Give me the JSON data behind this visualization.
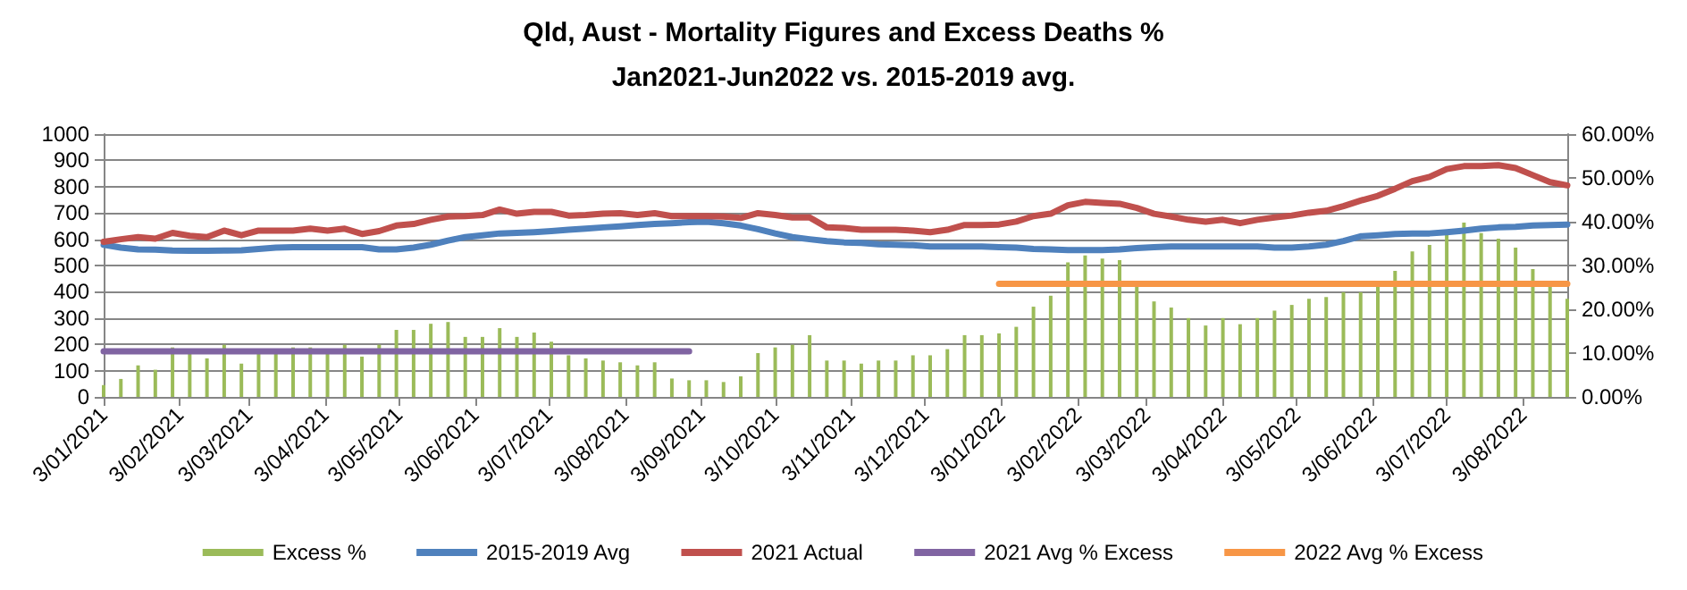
{
  "chart_data": {
    "type": "bar",
    "title": "Qld, Aust - Mortality Figures and Excess Deaths %",
    "subtitle": "Jan2021-Jun2022 vs. 2015-2019 avg.",
    "x": [
      "2021-01-03",
      "2021-01-10",
      "2021-01-17",
      "2021-01-24",
      "2021-01-31",
      "2021-02-07",
      "2021-02-14",
      "2021-02-21",
      "2021-02-28",
      "2021-03-07",
      "2021-03-14",
      "2021-03-21",
      "2021-03-28",
      "2021-04-04",
      "2021-04-11",
      "2021-04-18",
      "2021-04-25",
      "2021-05-02",
      "2021-05-09",
      "2021-05-16",
      "2021-05-23",
      "2021-05-30",
      "2021-06-06",
      "2021-06-13",
      "2021-06-20",
      "2021-06-27",
      "2021-07-04",
      "2021-07-11",
      "2021-07-18",
      "2021-07-25",
      "2021-08-01",
      "2021-08-08",
      "2021-08-15",
      "2021-08-22",
      "2021-08-29",
      "2021-09-05",
      "2021-09-12",
      "2021-09-19",
      "2021-09-26",
      "2021-10-03",
      "2021-10-10",
      "2021-10-17",
      "2021-10-24",
      "2021-10-31",
      "2021-11-07",
      "2021-11-14",
      "2021-11-21",
      "2021-11-28",
      "2021-12-05",
      "2021-12-12",
      "2021-12-19",
      "2021-12-26",
      "2022-01-02",
      "2022-01-09",
      "2022-01-16",
      "2022-01-23",
      "2022-01-30",
      "2022-02-06",
      "2022-02-13",
      "2022-02-20",
      "2022-02-27",
      "2022-03-06",
      "2022-03-13",
      "2022-03-20",
      "2022-03-27",
      "2022-04-03",
      "2022-04-10",
      "2022-04-17",
      "2022-04-24",
      "2022-05-01",
      "2022-05-08",
      "2022-05-15",
      "2022-05-22",
      "2022-05-29",
      "2022-06-05",
      "2022-06-12",
      "2022-06-19",
      "2022-06-26",
      "2022-07-03",
      "2022-07-10",
      "2022-07-17",
      "2022-07-24",
      "2022-07-31",
      "2022-08-07",
      "2022-08-14",
      "2022-08-21"
    ],
    "series": [
      {
        "name": "Excess %",
        "axis": "y2",
        "color": "#9bbb59",
        "values": [
          2.7,
          4.1,
          7.2,
          6.2,
          11.3,
          9.9,
          8.8,
          11.9,
          7.6,
          9.9,
          9.9,
          11.3,
          11.3,
          9.9,
          11.9,
          9.2,
          11.9,
          15.3,
          15.3,
          16.7,
          17.1,
          13.7,
          13.7,
          15.7,
          13.7,
          14.7,
          12.6,
          9.5,
          8.8,
          8.3,
          7.9,
          7.2,
          7.9,
          4.2,
          3.8,
          3.8,
          3.4,
          4.7,
          10.0,
          11.3,
          11.9,
          14.1,
          8.3,
          8.3,
          7.6,
          8.3,
          8.3,
          9.5,
          9.5,
          10.9,
          14.1,
          14.1,
          14.5,
          16.0,
          20.6,
          23.1,
          30.7,
          32.3,
          31.6,
          31.2,
          25.5,
          21.8,
          20.4,
          18.0,
          16.3,
          18.0,
          16.6,
          18.0,
          19.7,
          21.0,
          22.4,
          22.8,
          23.9,
          23.9,
          25.2,
          28.8,
          33.2,
          34.7,
          37.0,
          39.8,
          37.4,
          36.1,
          34.1,
          29.2,
          25.2,
          22.4
        ]
      },
      {
        "name": "2015-2019 Avg",
        "type": "line",
        "color": "#4f81bd",
        "values": [
          579,
          568,
          561,
          560,
          557,
          556,
          556,
          557,
          558,
          563,
          568,
          570,
          570,
          570,
          570,
          570,
          561,
          561,
          568,
          579,
          595,
          608,
          615,
          622,
          624,
          627,
          631,
          636,
          640,
          645,
          649,
          654,
          658,
          661,
          665,
          667,
          661,
          652,
          638,
          622,
          608,
          600,
          593,
          588,
          586,
          581,
          579,
          577,
          572,
          572,
          572,
          572,
          570,
          568,
          563,
          561,
          559,
          559,
          559,
          561,
          566,
          570,
          572,
          572,
          572,
          572,
          572,
          572,
          568,
          568,
          572,
          579,
          593,
          611,
          615,
          620,
          622,
          622,
          627,
          633,
          640,
          645,
          647,
          652,
          654,
          656
        ]
      },
      {
        "name": "2021 Actual",
        "type": "line",
        "color": "#c0504d",
        "values": [
          590,
          600,
          608,
          602,
          624,
          613,
          608,
          633,
          615,
          633,
          633,
          633,
          640,
          633,
          640,
          620,
          631,
          652,
          658,
          674,
          686,
          688,
          692,
          713,
          697,
          704,
          704,
          690,
          692,
          697,
          699,
          692,
          699,
          688,
          688,
          688,
          686,
          681,
          699,
          692,
          683,
          683,
          645,
          643,
          636,
          636,
          636,
          633,
          627,
          636,
          654,
          654,
          656,
          667,
          688,
          697,
          729,
          742,
          738,
          735,
          719,
          697,
          686,
          674,
          667,
          674,
          661,
          674,
          683,
          690,
          701,
          708,
          726,
          747,
          765,
          792,
          821,
          837,
          867,
          878,
          878,
          882,
          871,
          844,
          817,
          805
        ]
      },
      {
        "name": "2021 Avg % Excess",
        "type": "line",
        "axis": "y2",
        "color": "#8064a2",
        "x": [
          "2021-01-03",
          "2021-08-29"
        ],
        "values": [
          10.4,
          10.4
        ]
      },
      {
        "name": "2022 Avg % Excess",
        "type": "line",
        "axis": "y2",
        "color": "#f79646",
        "x": [
          "2022-01-02",
          "2022-08-21"
        ],
        "values": [
          25.8,
          25.8
        ]
      }
    ],
    "xlim": [
      "2021-01-03",
      "2022-08-21"
    ],
    "xticks": [
      {
        "value": "2021-01-03",
        "label": "3/01/2021"
      },
      {
        "value": "2021-02-03",
        "label": "3/02/2021"
      },
      {
        "value": "2021-03-03",
        "label": "3/03/2021"
      },
      {
        "value": "2021-04-03",
        "label": "3/04/2021"
      },
      {
        "value": "2021-05-03",
        "label": "3/05/2021"
      },
      {
        "value": "2021-06-03",
        "label": "3/06/2021"
      },
      {
        "value": "2021-07-03",
        "label": "3/07/2021"
      },
      {
        "value": "2021-08-03",
        "label": "3/08/2021"
      },
      {
        "value": "2021-09-03",
        "label": "3/09/2021"
      },
      {
        "value": "2021-10-03",
        "label": "3/10/2021"
      },
      {
        "value": "2021-11-03",
        "label": "3/11/2021"
      },
      {
        "value": "2021-12-03",
        "label": "3/12/2021"
      },
      {
        "value": "2022-01-03",
        "label": "3/01/2022"
      },
      {
        "value": "2022-02-03",
        "label": "3/02/2022"
      },
      {
        "value": "2022-03-03",
        "label": "3/03/2022"
      },
      {
        "value": "2022-04-03",
        "label": "3/04/2022"
      },
      {
        "value": "2022-05-03",
        "label": "3/05/2022"
      },
      {
        "value": "2022-06-03",
        "label": "3/06/2022"
      },
      {
        "value": "2022-07-03",
        "label": "3/07/2022"
      },
      {
        "value": "2022-08-03",
        "label": "3/08/2022"
      }
    ],
    "ylim": [
      0,
      1000
    ],
    "yticks": [
      0,
      100,
      200,
      300,
      400,
      500,
      600,
      700,
      800,
      900,
      1000
    ],
    "y2lim": [
      0,
      60
    ],
    "y2ticks": [
      {
        "value": 0,
        "label": "0.00%"
      },
      {
        "value": 10,
        "label": "10.00%"
      },
      {
        "value": 20,
        "label": "20.00%"
      },
      {
        "value": 30,
        "label": "30.00%"
      },
      {
        "value": 40,
        "label": "40.00%"
      },
      {
        "value": 50,
        "label": "50.00%"
      },
      {
        "value": 60,
        "label": "60.00%"
      }
    ],
    "grid": "y",
    "legend": "bottom",
    "marker": "none",
    "line_style": "solid"
  }
}
